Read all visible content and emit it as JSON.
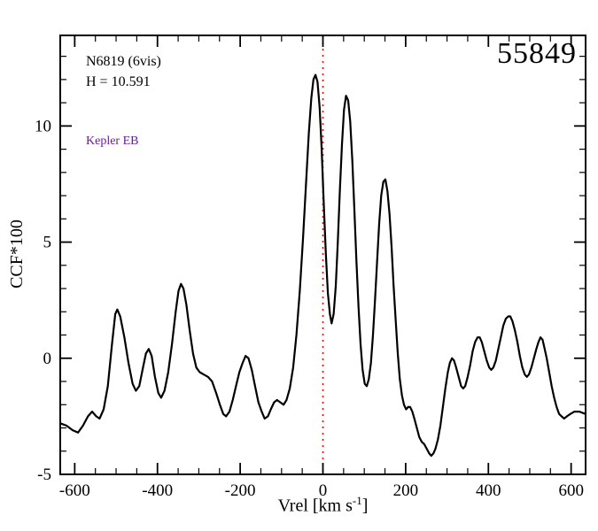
{
  "figure": {
    "background": "#ffffff",
    "epoch_label": "55849",
    "annotations": {
      "target": "N6819 (6vis)",
      "hmag": "H = 10.591",
      "category": "Kepler EB",
      "category_color": "#6a1b9a"
    }
  },
  "axes": {
    "ylabel": "CCF*100",
    "xlabel_prefix": "Vrel [km s",
    "xlabel_sup": "-1",
    "xlabel_suffix": "]",
    "x_ticks": [
      -600,
      -400,
      -200,
      0,
      200,
      400,
      600
    ],
    "y_ticks": [
      -5,
      0,
      5,
      10
    ],
    "xlim": [
      -635,
      635
    ],
    "ylim": [
      -5,
      13.9
    ]
  },
  "chart_data": {
    "type": "line",
    "title": "",
    "xlabel": "Vrel [km s^-1]",
    "ylabel": "CCF*100",
    "xlim": [
      -635,
      635
    ],
    "ylim": [
      -5,
      13.9
    ],
    "grid": false,
    "line_color": "#000000",
    "reference_line": {
      "x": 0,
      "color": "#ff0000",
      "style": "dotted"
    },
    "series": [
      {
        "name": "CCF",
        "points": [
          [
            -635,
            -2.8
          ],
          [
            -620,
            -2.9
          ],
          [
            -605,
            -3.1
          ],
          [
            -592,
            -3.2
          ],
          [
            -580,
            -2.9
          ],
          [
            -568,
            -2.5
          ],
          [
            -558,
            -2.3
          ],
          [
            -548,
            -2.5
          ],
          [
            -540,
            -2.6
          ],
          [
            -530,
            -2.2
          ],
          [
            -520,
            -1.2
          ],
          [
            -510,
            0.6
          ],
          [
            -502,
            1.9
          ],
          [
            -497,
            2.1
          ],
          [
            -490,
            1.8
          ],
          [
            -480,
            0.9
          ],
          [
            -470,
            -0.2
          ],
          [
            -460,
            -1.1
          ],
          [
            -452,
            -1.4
          ],
          [
            -444,
            -1.2
          ],
          [
            -436,
            -0.5
          ],
          [
            -428,
            0.2
          ],
          [
            -421,
            0.4
          ],
          [
            -414,
            0.1
          ],
          [
            -406,
            -0.8
          ],
          [
            -398,
            -1.5
          ],
          [
            -391,
            -1.7
          ],
          [
            -383,
            -1.4
          ],
          [
            -374,
            -0.6
          ],
          [
            -365,
            0.6
          ],
          [
            -356,
            2.0
          ],
          [
            -349,
            2.9
          ],
          [
            -343,
            3.2
          ],
          [
            -337,
            3.0
          ],
          [
            -330,
            2.3
          ],
          [
            -322,
            1.2
          ],
          [
            -314,
            0.2
          ],
          [
            -306,
            -0.4
          ],
          [
            -298,
            -0.6
          ],
          [
            -288,
            -0.7
          ],
          [
            -278,
            -0.8
          ],
          [
            -268,
            -1.0
          ],
          [
            -258,
            -1.5
          ],
          [
            -249,
            -2.0
          ],
          [
            -241,
            -2.4
          ],
          [
            -234,
            -2.5
          ],
          [
            -226,
            -2.3
          ],
          [
            -218,
            -1.8
          ],
          [
            -210,
            -1.2
          ],
          [
            -202,
            -0.6
          ],
          [
            -194,
            -0.2
          ],
          [
            -187,
            0.1
          ],
          [
            -180,
            0.0
          ],
          [
            -172,
            -0.5
          ],
          [
            -164,
            -1.2
          ],
          [
            -156,
            -1.9
          ],
          [
            -148,
            -2.3
          ],
          [
            -141,
            -2.6
          ],
          [
            -133,
            -2.5
          ],
          [
            -126,
            -2.2
          ],
          [
            -118,
            -1.9
          ],
          [
            -111,
            -1.8
          ],
          [
            -103,
            -1.9
          ],
          [
            -95,
            -2.0
          ],
          [
            -88,
            -1.8
          ],
          [
            -80,
            -1.3
          ],
          [
            -72,
            -0.4
          ],
          [
            -64,
            1.0
          ],
          [
            -56,
            2.9
          ],
          [
            -48,
            5.2
          ],
          [
            -41,
            7.5
          ],
          [
            -34,
            9.7
          ],
          [
            -28,
            11.2
          ],
          [
            -23,
            12.0
          ],
          [
            -18,
            12.2
          ],
          [
            -13,
            11.9
          ],
          [
            -8,
            10.8
          ],
          [
            -3,
            9.0
          ],
          [
            2,
            6.7
          ],
          [
            7,
            4.5
          ],
          [
            12,
            2.8
          ],
          [
            17,
            1.9
          ],
          [
            21,
            1.5
          ],
          [
            26,
            1.9
          ],
          [
            31,
            3.1
          ],
          [
            36,
            5.0
          ],
          [
            41,
            7.2
          ],
          [
            46,
            9.2
          ],
          [
            51,
            10.7
          ],
          [
            56,
            11.3
          ],
          [
            61,
            11.1
          ],
          [
            66,
            10.2
          ],
          [
            71,
            8.5
          ],
          [
            76,
            6.4
          ],
          [
            81,
            4.2
          ],
          [
            86,
            2.2
          ],
          [
            91,
            0.6
          ],
          [
            96,
            -0.5
          ],
          [
            101,
            -1.1
          ],
          [
            106,
            -1.2
          ],
          [
            111,
            -0.9
          ],
          [
            116,
            -0.2
          ],
          [
            121,
            1.0
          ],
          [
            126,
            2.5
          ],
          [
            131,
            4.2
          ],
          [
            136,
            5.8
          ],
          [
            141,
            7.0
          ],
          [
            146,
            7.6
          ],
          [
            151,
            7.7
          ],
          [
            156,
            7.2
          ],
          [
            161,
            6.2
          ],
          [
            166,
            4.8
          ],
          [
            171,
            3.1
          ],
          [
            176,
            1.6
          ],
          [
            181,
            0.2
          ],
          [
            186,
            -0.9
          ],
          [
            191,
            -1.6
          ],
          [
            196,
            -2.0
          ],
          [
            201,
            -2.2
          ],
          [
            206,
            -2.1
          ],
          [
            211,
            -2.1
          ],
          [
            216,
            -2.3
          ],
          [
            221,
            -2.6
          ],
          [
            227,
            -3.0
          ],
          [
            233,
            -3.4
          ],
          [
            239,
            -3.6
          ],
          [
            245,
            -3.7
          ],
          [
            251,
            -3.9
          ],
          [
            257,
            -4.1
          ],
          [
            262,
            -4.2
          ],
          [
            267,
            -4.1
          ],
          [
            272,
            -3.9
          ],
          [
            278,
            -3.5
          ],
          [
            284,
            -2.9
          ],
          [
            290,
            -2.1
          ],
          [
            296,
            -1.3
          ],
          [
            302,
            -0.6
          ],
          [
            307,
            -0.2
          ],
          [
            312,
            0.0
          ],
          [
            317,
            -0.1
          ],
          [
            322,
            -0.4
          ],
          [
            328,
            -0.8
          ],
          [
            334,
            -1.2
          ],
          [
            339,
            -1.3
          ],
          [
            344,
            -1.2
          ],
          [
            350,
            -0.8
          ],
          [
            356,
            -0.3
          ],
          [
            362,
            0.3
          ],
          [
            368,
            0.7
          ],
          [
            374,
            0.9
          ],
          [
            379,
            0.9
          ],
          [
            384,
            0.7
          ],
          [
            390,
            0.3
          ],
          [
            396,
            -0.1
          ],
          [
            402,
            -0.4
          ],
          [
            407,
            -0.5
          ],
          [
            412,
            -0.4
          ],
          [
            418,
            -0.1
          ],
          [
            424,
            0.4
          ],
          [
            430,
            0.9
          ],
          [
            436,
            1.4
          ],
          [
            442,
            1.7
          ],
          [
            448,
            1.8
          ],
          [
            453,
            1.8
          ],
          [
            458,
            1.6
          ],
          [
            464,
            1.2
          ],
          [
            470,
            0.7
          ],
          [
            476,
            0.1
          ],
          [
            482,
            -0.4
          ],
          [
            488,
            -0.7
          ],
          [
            493,
            -0.8
          ],
          [
            498,
            -0.7
          ],
          [
            504,
            -0.4
          ],
          [
            510,
            0.0
          ],
          [
            516,
            0.4
          ],
          [
            521,
            0.7
          ],
          [
            526,
            0.9
          ],
          [
            531,
            0.8
          ],
          [
            536,
            0.4
          ],
          [
            541,
            0.0
          ],
          [
            547,
            -0.6
          ],
          [
            553,
            -1.2
          ],
          [
            559,
            -1.7
          ],
          [
            565,
            -2.1
          ],
          [
            571,
            -2.4
          ],
          [
            577,
            -2.5
          ],
          [
            583,
            -2.6
          ],
          [
            590,
            -2.5
          ],
          [
            598,
            -2.4
          ],
          [
            608,
            -2.3
          ],
          [
            620,
            -2.3
          ],
          [
            635,
            -2.4
          ]
        ]
      }
    ]
  }
}
